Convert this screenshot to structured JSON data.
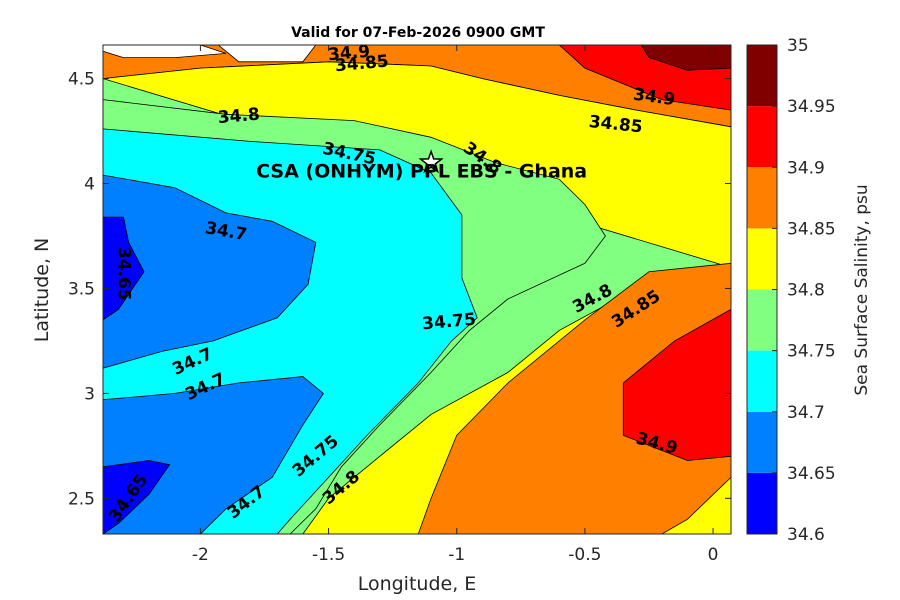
{
  "chart_data": {
    "type": "heatmap",
    "subtype": "filled-contour",
    "title": "Valid for 07-Feb-2026 0900 GMT",
    "xlabel": "Longitude, E",
    "ylabel": "Latitude, N",
    "xlim": [
      -2.38,
      0.07
    ],
    "ylim": [
      2.33,
      4.66
    ],
    "xticks": [
      {
        "value": -2,
        "label": "-2"
      },
      {
        "value": -1.5,
        "label": "-1.5"
      },
      {
        "value": -1,
        "label": "-1"
      },
      {
        "value": -0.5,
        "label": "-0.5"
      },
      {
        "value": 0,
        "label": "0"
      }
    ],
    "yticks": [
      {
        "value": 2.5,
        "label": "2.5"
      },
      {
        "value": 3,
        "label": "3"
      },
      {
        "value": 3.5,
        "label": "3.5"
      },
      {
        "value": 4,
        "label": "4"
      },
      {
        "value": 4.5,
        "label": "4.5"
      }
    ],
    "colorbar": {
      "label": "Sea Surface Salinity, psu",
      "range": [
        34.6,
        35
      ],
      "levels": [
        {
          "from": 34.6,
          "to": 34.65,
          "color": "#0000ff"
        },
        {
          "from": 34.65,
          "to": 34.7,
          "color": "#0080ff"
        },
        {
          "from": 34.7,
          "to": 34.75,
          "color": "#00ffff"
        },
        {
          "from": 34.75,
          "to": 34.8,
          "color": "#80ff80"
        },
        {
          "from": 34.8,
          "to": 34.85,
          "color": "#ffff00"
        },
        {
          "from": 34.85,
          "to": 34.9,
          "color": "#ff8000"
        },
        {
          "from": 34.9,
          "to": 34.95,
          "color": "#ff0000"
        },
        {
          "from": 34.95,
          "to": 35,
          "color": "#800000"
        }
      ],
      "ticks": [
        {
          "value": 34.6,
          "label": "34.6"
        },
        {
          "value": 34.65,
          "label": "34.65"
        },
        {
          "value": 34.7,
          "label": "34.7"
        },
        {
          "value": 34.75,
          "label": "34.75"
        },
        {
          "value": 34.8,
          "label": "34.8"
        },
        {
          "value": 34.85,
          "label": "34.85"
        },
        {
          "value": 34.9,
          "label": "34.9"
        },
        {
          "value": 34.95,
          "label": "34.95"
        },
        {
          "value": 35,
          "label": "35"
        }
      ]
    },
    "regions": [
      {
        "name": "region-orange-north",
        "color": "#ff8000",
        "points": [
          [
            -2.38,
            4.66
          ],
          [
            0.07,
            4.66
          ],
          [
            0.07,
            4.27
          ],
          [
            -0.3,
            4.35
          ],
          [
            -0.6,
            4.42
          ],
          [
            -0.9,
            4.5
          ],
          [
            -1.1,
            4.56
          ],
          [
            -1.5,
            4.58
          ],
          [
            -2.0,
            4.55
          ],
          [
            -2.38,
            4.5
          ]
        ]
      },
      {
        "name": "region-red-northeast",
        "color": "#ff0000",
        "points": [
          [
            -0.6,
            4.66
          ],
          [
            0.07,
            4.66
          ],
          [
            0.07,
            4.35
          ],
          [
            -0.2,
            4.4
          ],
          [
            -0.5,
            4.55
          ]
        ]
      },
      {
        "name": "region-darkred-northeast",
        "color": "#800000",
        "points": [
          [
            -0.28,
            4.66
          ],
          [
            0.07,
            4.66
          ],
          [
            0.07,
            4.55
          ],
          [
            -0.1,
            4.54
          ],
          [
            -0.25,
            4.6
          ]
        ]
      },
      {
        "name": "region-yellow-northeast",
        "color": "#ffff00",
        "points": [
          [
            -2.38,
            4.5
          ],
          [
            -2.0,
            4.55
          ],
          [
            -1.5,
            4.58
          ],
          [
            -1.1,
            4.56
          ],
          [
            -0.9,
            4.5
          ],
          [
            -0.6,
            4.42
          ],
          [
            -0.3,
            4.35
          ],
          [
            0.07,
            4.27
          ],
          [
            0.07,
            3.58
          ],
          [
            -0.3,
            3.5
          ],
          [
            -0.6,
            3.3
          ],
          [
            -0.8,
            3.1
          ],
          [
            -1.1,
            2.9
          ],
          [
            -1.3,
            2.7
          ],
          [
            -1.5,
            2.5
          ],
          [
            -1.6,
            2.33
          ],
          [
            -1.0,
            2.33
          ],
          [
            0.07,
            2.33
          ],
          [
            0.07,
            3.6
          ]
        ]
      },
      {
        "name": "region-orange-east",
        "color": "#ff8000",
        "points": [
          [
            0.07,
            3.62
          ],
          [
            -0.25,
            3.58
          ],
          [
            -0.5,
            3.35
          ],
          [
            -0.8,
            3.05
          ],
          [
            -1.0,
            2.8
          ],
          [
            -1.1,
            2.5
          ],
          [
            -1.15,
            2.33
          ],
          [
            -0.1,
            2.33
          ],
          [
            0.02,
            2.45
          ],
          [
            0.07,
            2.6
          ]
        ]
      },
      {
        "name": "region-red-east",
        "color": "#ff0000",
        "points": [
          [
            0.07,
            3.4
          ],
          [
            -0.15,
            3.25
          ],
          [
            -0.35,
            3.05
          ],
          [
            -0.35,
            2.8
          ],
          [
            -0.1,
            2.68
          ],
          [
            0.07,
            2.7
          ]
        ]
      },
      {
        "name": "region-yellow-southeast",
        "color": "#ffff00",
        "points": [
          [
            0.07,
            2.6
          ],
          [
            -0.1,
            2.4
          ],
          [
            -0.2,
            2.33
          ],
          [
            0.07,
            2.33
          ]
        ]
      },
      {
        "name": "region-green-central",
        "color": "#80ff80",
        "points": [
          [
            -2.38,
            4.4
          ],
          [
            -1.9,
            4.33
          ],
          [
            -1.4,
            4.3
          ],
          [
            -1.1,
            4.22
          ],
          [
            -0.85,
            4.1
          ],
          [
            -0.6,
            4.02
          ],
          [
            -0.5,
            3.9
          ],
          [
            -0.42,
            3.75
          ],
          [
            -0.5,
            3.62
          ],
          [
            -0.8,
            3.45
          ],
          [
            -0.95,
            3.3
          ],
          [
            -1.1,
            3.1
          ],
          [
            -1.3,
            2.85
          ],
          [
            -1.45,
            2.65
          ],
          [
            -1.55,
            2.45
          ],
          [
            -1.65,
            2.33
          ],
          [
            -2.38,
            2.33
          ],
          [
            -2.38,
            4.4
          ]
        ]
      },
      {
        "name": "region-cyan-west",
        "color": "#00ffff",
        "points": [
          [
            -2.38,
            4.26
          ],
          [
            -1.8,
            4.2
          ],
          [
            -1.3,
            4.16
          ],
          [
            -1.1,
            4.05
          ],
          [
            -0.98,
            3.85
          ],
          [
            -0.98,
            3.55
          ],
          [
            -0.92,
            3.36
          ],
          [
            -1.02,
            3.25
          ],
          [
            -1.15,
            3.05
          ],
          [
            -1.35,
            2.8
          ],
          [
            -1.5,
            2.6
          ],
          [
            -1.65,
            2.4
          ],
          [
            -1.7,
            2.33
          ],
          [
            -2.38,
            2.33
          ]
        ]
      },
      {
        "name": "region-blue-west",
        "color": "#0080ff",
        "points": [
          [
            -2.38,
            4.04
          ],
          [
            -2.1,
            3.98
          ],
          [
            -1.9,
            3.86
          ],
          [
            -1.72,
            3.82
          ],
          [
            -1.55,
            3.72
          ],
          [
            -1.58,
            3.52
          ],
          [
            -1.7,
            3.36
          ],
          [
            -1.95,
            3.25
          ],
          [
            -2.15,
            3.2
          ],
          [
            -2.38,
            3.12
          ]
        ]
      },
      {
        "name": "region-blue-southwest",
        "color": "#0080ff",
        "points": [
          [
            -2.38,
            2.97
          ],
          [
            -2.1,
            3.0
          ],
          [
            -1.85,
            3.05
          ],
          [
            -1.6,
            3.08
          ],
          [
            -1.52,
            3.0
          ],
          [
            -1.6,
            2.85
          ],
          [
            -1.72,
            2.6
          ],
          [
            -1.9,
            2.45
          ],
          [
            -2.0,
            2.33
          ],
          [
            -2.38,
            2.33
          ]
        ]
      },
      {
        "name": "region-darkblue-west",
        "color": "#0000ff",
        "points": [
          [
            -2.38,
            3.84
          ],
          [
            -2.3,
            3.84
          ],
          [
            -2.28,
            3.72
          ],
          [
            -2.22,
            3.58
          ],
          [
            -2.32,
            3.4
          ],
          [
            -2.38,
            3.35
          ]
        ]
      },
      {
        "name": "region-darkblue-southwest",
        "color": "#0000ff",
        "points": [
          [
            -2.38,
            2.65
          ],
          [
            -2.2,
            2.68
          ],
          [
            -2.12,
            2.66
          ],
          [
            -2.2,
            2.52
          ],
          [
            -2.32,
            2.38
          ],
          [
            -2.38,
            2.33
          ]
        ]
      },
      {
        "name": "region-missing-data",
        "color": "#ffffff",
        "points": [
          [
            -2.38,
            4.66
          ],
          [
            -2.0,
            4.66
          ],
          [
            -1.9,
            4.62
          ],
          [
            -2.1,
            4.6
          ],
          [
            -2.3,
            4.6
          ],
          [
            -2.38,
            4.63
          ]
        ]
      },
      {
        "name": "region-missing-data-2",
        "color": "#ffffff",
        "points": [
          [
            -1.93,
            4.66
          ],
          [
            -1.55,
            4.66
          ],
          [
            -1.6,
            4.58
          ],
          [
            -1.85,
            4.58
          ]
        ]
      }
    ],
    "contour_labels": [
      {
        "text": "34.9",
        "lon": -1.42,
        "lat": 4.62,
        "angle": -5
      },
      {
        "text": "34.85",
        "lon": -1.37,
        "lat": 4.57,
        "angle": -5
      },
      {
        "text": "34.8",
        "lon": -1.85,
        "lat": 4.32,
        "angle": -5
      },
      {
        "text": "34.9",
        "lon": -0.23,
        "lat": 4.41,
        "angle": 8
      },
      {
        "text": "34.85",
        "lon": -0.38,
        "lat": 4.28,
        "angle": 6
      },
      {
        "text": "34.75",
        "lon": -1.42,
        "lat": 4.14,
        "angle": 12
      },
      {
        "text": "34.8",
        "lon": -0.9,
        "lat": 4.12,
        "angle": 35
      },
      {
        "text": "34.7",
        "lon": -1.9,
        "lat": 3.77,
        "angle": 10
      },
      {
        "text": "34.65",
        "lon": -2.3,
        "lat": 3.57,
        "angle": 90
      },
      {
        "text": "34.75",
        "lon": -1.03,
        "lat": 3.34,
        "angle": -5
      },
      {
        "text": "34.8",
        "lon": -0.47,
        "lat": 3.45,
        "angle": -28
      },
      {
        "text": "34.85",
        "lon": -0.3,
        "lat": 3.4,
        "angle": -33
      },
      {
        "text": "34.7",
        "lon": -2.03,
        "lat": 3.15,
        "angle": -25
      },
      {
        "text": "34.7",
        "lon": -1.98,
        "lat": 3.03,
        "angle": -25
      },
      {
        "text": "34.9",
        "lon": -0.22,
        "lat": 2.76,
        "angle": 15
      },
      {
        "text": "34.75",
        "lon": -1.55,
        "lat": 2.7,
        "angle": -40
      },
      {
        "text": "34.8",
        "lon": -1.45,
        "lat": 2.55,
        "angle": -40
      },
      {
        "text": "34.7",
        "lon": -1.82,
        "lat": 2.48,
        "angle": -38
      },
      {
        "text": "34.65",
        "lon": -2.28,
        "lat": 2.5,
        "angle": -55
      }
    ],
    "site": {
      "label": "CSA (ONHYM) PPL EBS  - Ghana",
      "lon": -1.1,
      "lat": 4.1
    }
  }
}
